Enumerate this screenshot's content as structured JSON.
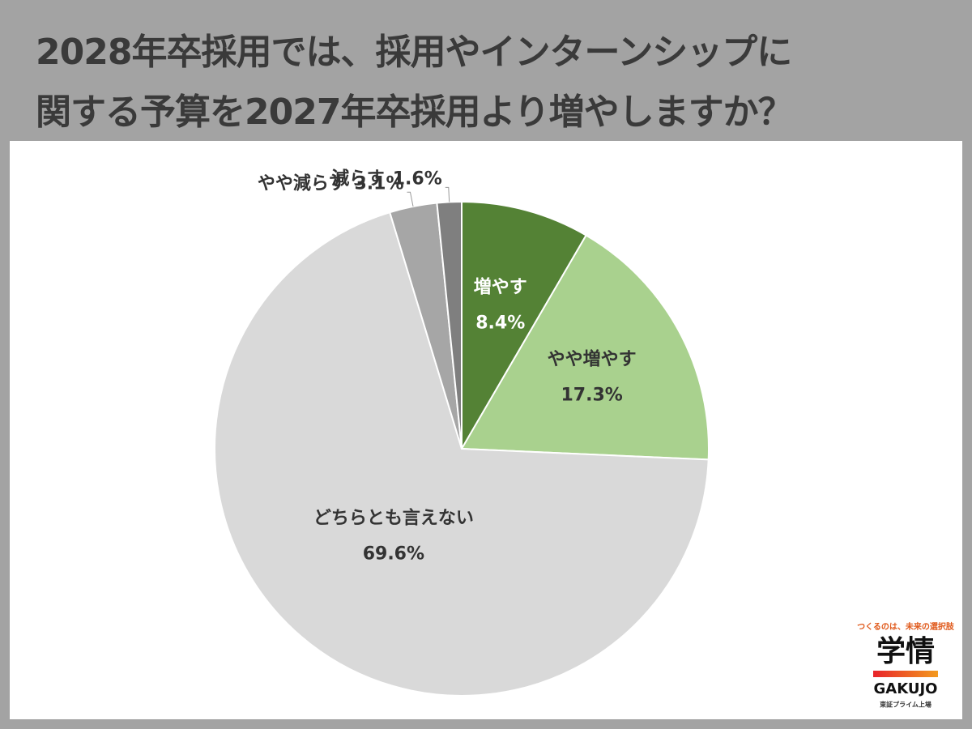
{
  "chart_data": {
    "type": "pie",
    "title": [
      "2028年卒採用では、採用やインターンシップに",
      "関する予算を2027年卒採用より増やしますか？"
    ],
    "categories": [
      "増やす",
      "やや増やす",
      "どちらとも言えない",
      "やや減らす",
      "減らす"
    ],
    "values": [
      8.4,
      17.3,
      69.6,
      3.1,
      1.6
    ],
    "value_labels": [
      "8.4%",
      "17.3%",
      "69.6%",
      "3.1%",
      "1.6%"
    ],
    "colors": [
      "#548235",
      "#a9d18e",
      "#d9d9d9",
      "#a6a6a6",
      "#7f7f7f"
    ]
  },
  "logo": {
    "tagline": "つくるのは、未来の選択肢",
    "name": "学情",
    "latin": "GAKUJO",
    "note": "東証プライム上場"
  }
}
